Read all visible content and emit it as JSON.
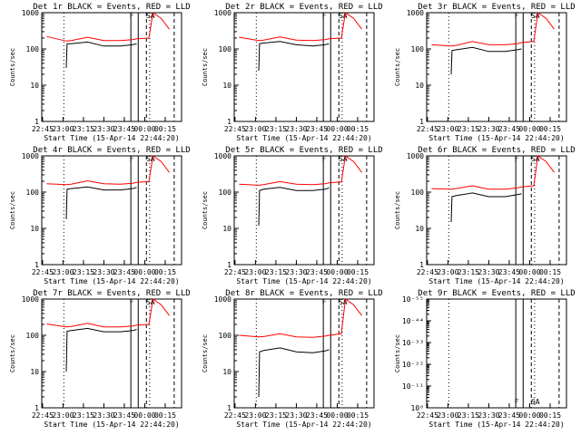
{
  "x_tick_labels": [
    "22:45",
    "23:00",
    "23:15",
    "23:30",
    "23:45",
    "00:00",
    "00:15"
  ],
  "xlabel": "Start Time (15-Apr-14 22:44:20)",
  "ylabel": "Counts/sec",
  "marker_F": "F",
  "marker_SA": "SA",
  "colors": {
    "events": "#000000",
    "lld": "#ff0000",
    "axes": "#000000",
    "background": "#ffffff"
  },
  "chart_data": [
    {
      "type": "line",
      "title": "Det 1r BLACK = Events, RED = LLD",
      "ylabel": "Counts/sec",
      "xlabel": "Start Time (15-Apr-14 22:44:20)",
      "x_ticks": [
        "22:45",
        "23:00",
        "23:15",
        "23:30",
        "23:45",
        "00:00",
        "00:15"
      ],
      "y_scale": "log",
      "y_ticks": [
        "1",
        "10",
        "100",
        "1000"
      ],
      "y_range": [
        1,
        1000
      ],
      "series": [
        {
          "color": "black",
          "x": [
            23.04,
            23.05,
            23.1,
            23.3,
            23.5,
            23.7,
            23.85,
            23.9
          ],
          "y": [
            30,
            140,
            140,
            155,
            120,
            120,
            130,
            140
          ]
        },
        {
          "color": "red",
          "x": [
            22.8,
            23.04,
            23.1,
            23.3,
            23.5,
            23.7,
            23.85,
            23.9,
            24.05,
            24.1,
            24.2,
            24.3
          ],
          "y": [
            220,
            165,
            170,
            210,
            170,
            170,
            180,
            190,
            200,
            1000,
            700,
            350
          ]
        }
      ]
    },
    {
      "type": "line",
      "title": "Det 2r BLACK = Events, RED = LLD",
      "ylabel": "Counts/sec",
      "xlabel": "Start Time (15-Apr-14 22:44:20)",
      "x_ticks": [
        "22:45",
        "23:00",
        "23:15",
        "23:30",
        "23:45",
        "00:00",
        "00:15"
      ],
      "y_scale": "log",
      "y_ticks": [
        "1",
        "10",
        "100",
        "1000"
      ],
      "y_range": [
        1,
        1000
      ],
      "series": [
        {
          "color": "black",
          "x": [
            23.04,
            23.05,
            23.1,
            23.3,
            23.5,
            23.7,
            23.85,
            23.9
          ],
          "y": [
            25,
            140,
            145,
            160,
            130,
            120,
            130,
            140
          ]
        },
        {
          "color": "red",
          "x": [
            22.8,
            23.04,
            23.1,
            23.3,
            23.5,
            23.7,
            23.85,
            23.9,
            24.05,
            24.1,
            24.2,
            24.3
          ],
          "y": [
            210,
            170,
            175,
            215,
            175,
            170,
            180,
            190,
            200,
            1000,
            700,
            350
          ]
        }
      ]
    },
    {
      "type": "line",
      "title": "Det 3r BLACK = Events, RED = LLD",
      "ylabel": "Counts/sec",
      "xlabel": "Start Time (15-Apr-14 22:44:20)",
      "x_ticks": [
        "22:45",
        "23:00",
        "23:15",
        "23:30",
        "23:45",
        "00:00",
        "00:15"
      ],
      "y_scale": "log",
      "y_ticks": [
        "1",
        "10",
        "100",
        "1000"
      ],
      "y_range": [
        1,
        1000
      ],
      "series": [
        {
          "color": "black",
          "x": [
            23.04,
            23.05,
            23.1,
            23.3,
            23.5,
            23.7,
            23.85,
            23.9
          ],
          "y": [
            20,
            90,
            95,
            110,
            85,
            85,
            95,
            100
          ]
        },
        {
          "color": "red",
          "x": [
            22.8,
            23.04,
            23.1,
            23.3,
            23.5,
            23.7,
            23.85,
            23.9,
            24.05,
            24.1,
            24.2,
            24.3
          ],
          "y": [
            130,
            120,
            125,
            160,
            130,
            130,
            140,
            150,
            160,
            1000,
            700,
            350
          ]
        }
      ]
    },
    {
      "type": "line",
      "title": "Det 4r BLACK = Events, RED = LLD",
      "ylabel": "Counts/sec",
      "xlabel": "Start Time (15-Apr-14 22:44:20)",
      "x_ticks": [
        "22:45",
        "23:00",
        "23:15",
        "23:30",
        "23:45",
        "00:00",
        "00:15"
      ],
      "y_scale": "log",
      "y_ticks": [
        "1",
        "10",
        "100",
        "1000"
      ],
      "y_range": [
        1,
        1000
      ],
      "series": [
        {
          "color": "black",
          "x": [
            23.04,
            23.05,
            23.1,
            23.3,
            23.5,
            23.7,
            23.85,
            23.9
          ],
          "y": [
            18,
            120,
            125,
            140,
            115,
            115,
            125,
            135
          ]
        },
        {
          "color": "red",
          "x": [
            22.8,
            23.04,
            23.1,
            23.3,
            23.5,
            23.7,
            23.85,
            23.9,
            24.05,
            24.1,
            24.2,
            24.3
          ],
          "y": [
            170,
            160,
            165,
            205,
            170,
            165,
            175,
            185,
            195,
            1000,
            700,
            350
          ]
        }
      ]
    },
    {
      "type": "line",
      "title": "Det 5r BLACK = Events, RED = LLD",
      "ylabel": "Counts/sec",
      "xlabel": "Start Time (15-Apr-14 22:44:20)",
      "x_ticks": [
        "22:45",
        "23:00",
        "23:15",
        "23:30",
        "23:45",
        "00:00",
        "00:15"
      ],
      "y_scale": "log",
      "y_ticks": [
        "1",
        "10",
        "100",
        "1000"
      ],
      "y_range": [
        1,
        1000
      ],
      "series": [
        {
          "color": "black",
          "x": [
            23.04,
            23.05,
            23.1,
            23.3,
            23.5,
            23.7,
            23.85,
            23.9
          ],
          "y": [
            12,
            110,
            120,
            135,
            110,
            110,
            120,
            130
          ]
        },
        {
          "color": "red",
          "x": [
            22.8,
            23.04,
            23.1,
            23.3,
            23.5,
            23.7,
            23.85,
            23.9,
            24.05,
            24.1,
            24.2,
            24.3
          ],
          "y": [
            165,
            155,
            160,
            195,
            165,
            160,
            170,
            180,
            190,
            1000,
            700,
            350
          ]
        }
      ]
    },
    {
      "type": "line",
      "title": "Det 6r BLACK = Events, RED = LLD",
      "ylabel": "Counts/sec",
      "xlabel": "Start Time (15-Apr-14 22:44:20)",
      "x_ticks": [
        "22:45",
        "23:00",
        "23:15",
        "23:30",
        "23:45",
        "00:00",
        "00:15"
      ],
      "y_scale": "log",
      "y_ticks": [
        "1",
        "10",
        "100",
        "1000"
      ],
      "y_range": [
        1,
        1000
      ],
      "series": [
        {
          "color": "black",
          "x": [
            23.04,
            23.05,
            23.1,
            23.3,
            23.5,
            23.7,
            23.85,
            23.9
          ],
          "y": [
            15,
            75,
            80,
            95,
            75,
            75,
            85,
            90
          ]
        },
        {
          "color": "red",
          "x": [
            22.8,
            23.04,
            23.1,
            23.3,
            23.5,
            23.7,
            23.85,
            23.9,
            24.05,
            24.1,
            24.2,
            24.3
          ],
          "y": [
            125,
            120,
            125,
            150,
            120,
            120,
            130,
            140,
            150,
            1000,
            700,
            350
          ]
        }
      ]
    },
    {
      "type": "line",
      "title": "Det 7r BLACK = Events, RED = LLD",
      "ylabel": "Counts/sec",
      "xlabel": "Start Time (15-Apr-14 22:44:20)",
      "x_ticks": [
        "22:45",
        "23:00",
        "23:15",
        "23:30",
        "23:45",
        "00:00",
        "00:15"
      ],
      "y_scale": "log",
      "y_ticks": [
        "1",
        "10",
        "100",
        "1000"
      ],
      "y_range": [
        1,
        1000
      ],
      "series": [
        {
          "color": "black",
          "x": [
            23.04,
            23.05,
            23.1,
            23.3,
            23.5,
            23.7,
            23.85,
            23.9
          ],
          "y": [
            10,
            130,
            135,
            155,
            125,
            125,
            135,
            145
          ]
        },
        {
          "color": "red",
          "x": [
            22.8,
            23.04,
            23.1,
            23.3,
            23.5,
            23.7,
            23.85,
            23.9,
            24.05,
            24.1,
            24.2,
            24.3
          ],
          "y": [
            205,
            170,
            175,
            215,
            170,
            170,
            180,
            190,
            200,
            1000,
            700,
            350
          ]
        }
      ]
    },
    {
      "type": "line",
      "title": "Det 8r BLACK = Events, RED = LLD",
      "ylabel": "Counts/sec",
      "xlabel": "Start Time (15-Apr-14 22:44:20)",
      "x_ticks": [
        "22:45",
        "23:00",
        "23:15",
        "23:30",
        "23:45",
        "00:00",
        "00:15"
      ],
      "y_scale": "log",
      "y_ticks": [
        "1",
        "10",
        "100",
        "1000"
      ],
      "y_range": [
        1,
        1000
      ],
      "series": [
        {
          "color": "black",
          "x": [
            23.04,
            23.05,
            23.1,
            23.3,
            23.5,
            23.7,
            23.85,
            23.9
          ],
          "y": [
            2,
            35,
            38,
            45,
            35,
            33,
            37,
            40
          ]
        },
        {
          "color": "red",
          "x": [
            22.8,
            23.04,
            23.1,
            23.3,
            23.5,
            23.7,
            23.85,
            23.9,
            24.05,
            24.1,
            24.2,
            24.3
          ],
          "y": [
            100,
            90,
            92,
            110,
            90,
            88,
            95,
            100,
            110,
            1000,
            700,
            350
          ]
        }
      ]
    },
    {
      "type": "line",
      "title": "Det 9r BLACK = Events, RED = LLD",
      "ylabel": "Counts/sec",
      "xlabel": "Start Time (15-Apr-14 22:44:20)",
      "x_ticks": [
        "22:45",
        "23:00",
        "23:15",
        "23:30",
        "23:45",
        "00:00",
        "00:15"
      ],
      "y_scale": "log",
      "y_ticks": [
        "10⁰",
        "10⁻¹¹",
        "10⁻²²",
        "10⁻³³",
        "10⁻⁴⁴",
        "10⁻⁵⁵"
      ],
      "y_range": [
        1,
        1000
      ],
      "series": []
    }
  ]
}
